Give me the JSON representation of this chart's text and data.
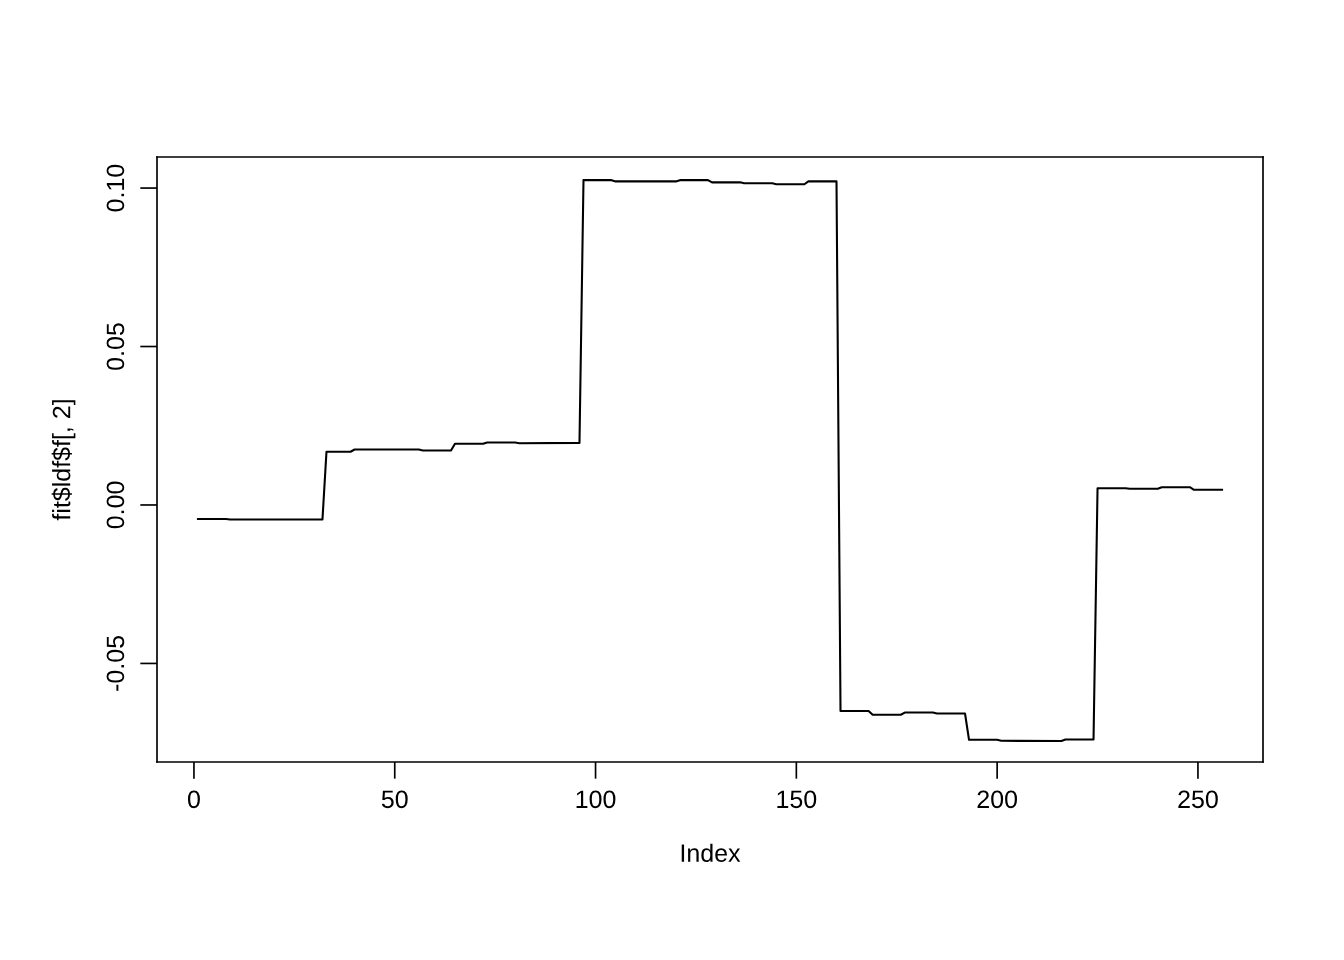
{
  "chart_data": {
    "type": "line",
    "xlabel": "Index",
    "ylabel": "fit$ldf$f[, 2]",
    "x": [
      1,
      8,
      9,
      32,
      33,
      39,
      40,
      56,
      57,
      64,
      65,
      72,
      73,
      80,
      81,
      96,
      97,
      104,
      105,
      120,
      121,
      128,
      129,
      136,
      137,
      144,
      145,
      152,
      153,
      160,
      161,
      168,
      169,
      176,
      177,
      184,
      185,
      192,
      193,
      200,
      201,
      216,
      217,
      224,
      225,
      232,
      233,
      240,
      241,
      248,
      249,
      256
    ],
    "series": [
      {
        "color": "#000000",
        "values": [
          -0.0044,
          -0.0044,
          -0.0046,
          -0.0046,
          0.0168,
          0.0168,
          0.0175,
          0.0175,
          0.0172,
          0.0172,
          0.0193,
          0.0193,
          0.0197,
          0.0197,
          0.0195,
          0.0196,
          0.1025,
          0.1025,
          0.1021,
          0.1021,
          0.1025,
          0.1025,
          0.1018,
          0.1018,
          0.1015,
          0.1015,
          0.1012,
          0.1012,
          0.1021,
          0.1021,
          -0.065,
          -0.065,
          -0.0662,
          -0.0662,
          -0.0655,
          -0.0655,
          -0.0658,
          -0.0658,
          -0.0741,
          -0.0741,
          -0.0744,
          -0.0745,
          -0.074,
          -0.074,
          0.0053,
          0.0053,
          0.0051,
          0.0051,
          0.0056,
          0.0056,
          0.0048,
          0.0048
        ]
      }
    ],
    "xlim": [
      -9.2,
      266.2
    ],
    "ylim": [
      -0.0811,
      0.1098
    ],
    "xticks": [
      0,
      50,
      100,
      150,
      200,
      250
    ],
    "yticks": [
      {
        "value": -0.05,
        "label": "-0.05"
      },
      {
        "value": 0.0,
        "label": "0.00"
      },
      {
        "value": 0.05,
        "label": "0.05"
      },
      {
        "value": 0.1,
        "label": "0.10"
      }
    ],
    "grid": false,
    "legend": false,
    "marker": "none",
    "line_style": "solid"
  }
}
